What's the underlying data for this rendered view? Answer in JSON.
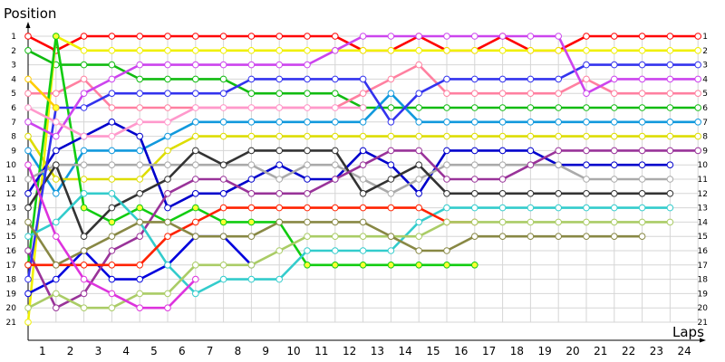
{
  "chart_data": {
    "type": "line",
    "title": "",
    "xlabel": "Laps",
    "ylabel": "Position",
    "x": [
      0,
      1,
      2,
      3,
      4,
      5,
      6,
      7,
      8,
      9,
      10,
      11,
      12,
      13,
      14,
      15,
      16,
      17,
      18,
      19,
      20,
      21,
      22,
      23,
      24
    ],
    "xticks": [
      1,
      2,
      3,
      4,
      5,
      6,
      7,
      8,
      9,
      10,
      11,
      12,
      13,
      14,
      15,
      16,
      17,
      18,
      19,
      20,
      21,
      22,
      23,
      24
    ],
    "yticks": [
      1,
      2,
      3,
      4,
      5,
      6,
      7,
      8,
      9,
      10,
      11,
      12,
      13,
      14,
      15,
      16,
      17,
      18,
      19,
      20,
      21
    ],
    "xlim": [
      0,
      24.5
    ],
    "ylim": [
      21,
      1
    ],
    "y_inverted": true,
    "grid": true,
    "right_axis_labels": true,
    "series": [
      {
        "color": "#ff0000",
        "values": [
          1,
          2,
          1,
          1,
          1,
          1,
          1,
          1,
          1,
          1,
          1,
          1,
          2,
          2,
          1,
          2,
          2,
          1,
          2,
          2,
          1,
          1,
          1,
          1,
          1
        ]
      },
      {
        "color": "#11bb11",
        "values": [
          2,
          3,
          3,
          3,
          4,
          4,
          4,
          4,
          5,
          5,
          5,
          5,
          6,
          6,
          6,
          6,
          6,
          6,
          6,
          6,
          6,
          6,
          6,
          6,
          6
        ]
      },
      {
        "color": "#f0f000",
        "values": [
          21,
          1,
          2,
          2,
          2,
          2,
          2,
          2,
          2,
          2,
          2,
          2,
          2,
          2,
          2,
          2,
          2,
          2,
          2,
          2,
          2,
          2,
          2,
          2,
          2
        ]
      },
      {
        "color": "#0000dd",
        "values": [
          19,
          18,
          16,
          18,
          18,
          17,
          15,
          15,
          17,
          null,
          null,
          null,
          null,
          null,
          null,
          null,
          null,
          null,
          null,
          null,
          null,
          null,
          null,
          null,
          null
        ]
      },
      {
        "color": "#ff80a0",
        "values": [
          5,
          5,
          4,
          6,
          6,
          6,
          6,
          6,
          6,
          6,
          6,
          6,
          5,
          4,
          3,
          5,
          5,
          5,
          5,
          5,
          4,
          5,
          5,
          5,
          5
        ]
      },
      {
        "color": "#1199dd",
        "values": [
          9,
          12,
          9,
          9,
          9,
          8,
          7,
          7,
          7,
          7,
          7,
          7,
          7,
          5,
          7,
          7,
          7,
          7,
          7,
          7,
          7,
          7,
          7,
          7,
          7
        ]
      },
      {
        "color": "#dddd00",
        "values": [
          8,
          11,
          11,
          11,
          11,
          9,
          8,
          8,
          8,
          8,
          8,
          8,
          8,
          8,
          8,
          8,
          8,
          8,
          8,
          8,
          8,
          8,
          8,
          8,
          8
        ]
      },
      {
        "color": "#11cc11",
        "values": [
          17,
          1,
          13,
          14,
          13,
          14,
          13,
          14,
          14,
          14,
          17,
          17,
          17,
          17,
          17,
          17,
          17,
          null,
          null,
          null,
          null,
          null,
          null,
          null,
          null
        ]
      },
      {
        "color": "#0000cc",
        "values": [
          12,
          9,
          8,
          7,
          8,
          13,
          12,
          12,
          11,
          10,
          11,
          11,
          9,
          10,
          12,
          9,
          9,
          9,
          9,
          10,
          10,
          10,
          10,
          10,
          null
        ]
      },
      {
        "color": "#aaaaaa",
        "values": [
          11,
          10,
          10,
          10,
          10,
          10,
          10,
          10,
          10,
          11,
          10,
          10,
          11,
          12,
          11,
          10,
          10,
          10,
          10,
          10,
          11,
          11,
          11,
          11,
          null
        ]
      },
      {
        "color": "#333333",
        "values": [
          13,
          10,
          15,
          13,
          12,
          11,
          9,
          10,
          9,
          9,
          9,
          9,
          12,
          11,
          10,
          12,
          12,
          12,
          12,
          12,
          12,
          12,
          12,
          12,
          null
        ]
      },
      {
        "color": "#993399",
        "values": [
          16,
          20,
          19,
          16,
          15,
          12,
          11,
          11,
          12,
          12,
          12,
          11,
          10,
          9,
          9,
          11,
          11,
          11,
          10,
          9,
          9,
          9,
          9,
          9,
          9
        ]
      },
      {
        "color": "#3333ee",
        "values": [
          18,
          6,
          6,
          5,
          5,
          5,
          5,
          5,
          4,
          4,
          4,
          4,
          4,
          7,
          5,
          4,
          4,
          4,
          4,
          4,
          3,
          3,
          3,
          3,
          3
        ]
      },
      {
        "color": "#cc44ee",
        "values": [
          7,
          8,
          5,
          4,
          3,
          3,
          3,
          3,
          3,
          3,
          3,
          2,
          1,
          1,
          1,
          1,
          1,
          1,
          1,
          1,
          5,
          4,
          4,
          4,
          4
        ]
      },
      {
        "color": "#33cccc",
        "values": [
          15,
          14,
          12,
          12,
          14,
          17,
          19,
          18,
          18,
          18,
          16,
          16,
          16,
          16,
          14,
          13,
          13,
          13,
          13,
          13,
          13,
          13,
          13,
          13,
          null
        ]
      },
      {
        "color": "#ff2200",
        "values": [
          17,
          17,
          17,
          17,
          17,
          15,
          14,
          13,
          13,
          13,
          13,
          13,
          13,
          13,
          13,
          14,
          14,
          null,
          null,
          null,
          null,
          null,
          null,
          null,
          null
        ]
      },
      {
        "color": "#aacc66",
        "values": [
          20,
          19,
          20,
          20,
          19,
          19,
          17,
          17,
          17,
          16,
          15,
          15,
          15,
          15,
          15,
          14,
          14,
          14,
          14,
          14,
          14,
          14,
          14,
          14,
          null
        ]
      },
      {
        "color": "#888844",
        "values": [
          14,
          17,
          16,
          15,
          14,
          14,
          15,
          15,
          15,
          14,
          14,
          14,
          14,
          15,
          16,
          16,
          15,
          15,
          15,
          15,
          15,
          15,
          15,
          null,
          null
        ]
      },
      {
        "color": "#ff99cc",
        "values": [
          6,
          7,
          8,
          8,
          7,
          7,
          6,
          6,
          6,
          6,
          6,
          6,
          6,
          null,
          null,
          null,
          null,
          null,
          null,
          null,
          null,
          null,
          null,
          null,
          null
        ]
      },
      {
        "color": "#dd33dd",
        "values": [
          10,
          15,
          18,
          19,
          20,
          20,
          18,
          null,
          null,
          null,
          null,
          null,
          null,
          null,
          null,
          null,
          null,
          null,
          null,
          null,
          null,
          null,
          null,
          null,
          null
        ]
      },
      {
        "color": "#ffcc00",
        "values": [
          4,
          6,
          null,
          null,
          null,
          null,
          null,
          null,
          null,
          null,
          null,
          null,
          null,
          null,
          null,
          null,
          null,
          null,
          null,
          null,
          null,
          null,
          null,
          null,
          null
        ]
      }
    ]
  }
}
